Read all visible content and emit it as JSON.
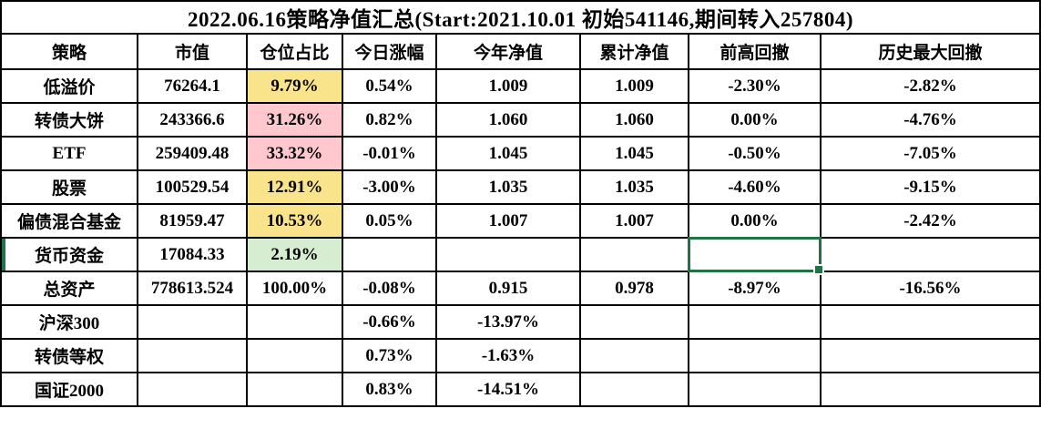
{
  "title": "2022.06.16策略净值汇总(Start:2021.10.01 初始541146,期间转入257804)",
  "colors": {
    "grid_border": "#000000",
    "highlight_yellow_bg": "#FAE48B",
    "highlight_yellow_text": "#9C6500",
    "highlight_pink_bg": "#FFC7CE",
    "highlight_pink_text": "#B00009",
    "highlight_green_bg": "#D6EDD2",
    "highlight_green_text": "#156F1F",
    "selection_green": "#217346"
  },
  "table": {
    "columns": [
      {
        "key": "strategy",
        "label": "策略"
      },
      {
        "key": "market_value",
        "label": "市值"
      },
      {
        "key": "position_pct",
        "label": "仓位占比"
      },
      {
        "key": "today_change",
        "label": "今日涨幅"
      },
      {
        "key": "ytd_nav",
        "label": "今年净值"
      },
      {
        "key": "cumulative_nav",
        "label": "累计净值"
      },
      {
        "key": "drawdown_from_high",
        "label": "前高回撤"
      },
      {
        "key": "historical_max_drawdown",
        "label": "历史最大回撤"
      }
    ],
    "rows": [
      {
        "strategy": "低溢价",
        "market_value": "76264.1",
        "position_pct": "9.79%",
        "position_highlight": "yellow",
        "today_change": "0.54%",
        "ytd_nav": "1.009",
        "cumulative_nav": "1.009",
        "drawdown_from_high": "-2.30%",
        "historical_max_drawdown": "-2.82%"
      },
      {
        "strategy": "转债大饼",
        "market_value": "243366.6",
        "position_pct": "31.26%",
        "position_highlight": "pink",
        "today_change": "0.82%",
        "ytd_nav": "1.060",
        "cumulative_nav": "1.060",
        "drawdown_from_high": "0.00%",
        "historical_max_drawdown": "-4.76%"
      },
      {
        "strategy": "ETF",
        "market_value": "259409.48",
        "position_pct": "33.32%",
        "position_highlight": "pink",
        "today_change": "-0.01%",
        "ytd_nav": "1.045",
        "cumulative_nav": "1.045",
        "drawdown_from_high": "-0.50%",
        "historical_max_drawdown": "-7.05%"
      },
      {
        "strategy": "股票",
        "market_value": "100529.54",
        "position_pct": "12.91%",
        "position_highlight": "yellow",
        "today_change": "-3.00%",
        "ytd_nav": "1.035",
        "cumulative_nav": "1.035",
        "drawdown_from_high": "-4.60%",
        "historical_max_drawdown": "-9.15%"
      },
      {
        "strategy": "偏债混合基金",
        "market_value": "81959.47",
        "position_pct": "10.53%",
        "position_highlight": "yellow",
        "today_change": "0.05%",
        "ytd_nav": "1.007",
        "cumulative_nav": "1.007",
        "drawdown_from_high": "0.00%",
        "historical_max_drawdown": "-2.42%"
      },
      {
        "strategy": "货币资金",
        "market_value": "17084.33",
        "position_pct": "2.19%",
        "position_highlight": "green",
        "today_change": "",
        "ytd_nav": "",
        "cumulative_nav": "",
        "drawdown_from_high": "",
        "historical_max_drawdown": "",
        "selected_cell": "drawdown_from_high",
        "row_selected_indicator": true
      },
      {
        "strategy": "总资产",
        "market_value": "778613.524",
        "position_pct": "100.00%",
        "position_highlight": null,
        "today_change": "-0.08%",
        "ytd_nav": "0.915",
        "cumulative_nav": "0.978",
        "drawdown_from_high": "-8.97%",
        "historical_max_drawdown": "-16.56%"
      },
      {
        "strategy": "沪深300",
        "market_value": "",
        "position_pct": "",
        "position_highlight": null,
        "today_change": "-0.66%",
        "ytd_nav": "-13.97%",
        "cumulative_nav": "",
        "drawdown_from_high": "",
        "historical_max_drawdown": ""
      },
      {
        "strategy": "转债等权",
        "market_value": "",
        "position_pct": "",
        "position_highlight": null,
        "today_change": "0.73%",
        "ytd_nav": "-1.63%",
        "cumulative_nav": "",
        "drawdown_from_high": "",
        "historical_max_drawdown": ""
      },
      {
        "strategy": "国证2000",
        "market_value": "",
        "position_pct": "",
        "position_highlight": null,
        "today_change": "0.83%",
        "ytd_nav": "-14.51%",
        "cumulative_nav": "",
        "drawdown_from_high": "",
        "historical_max_drawdown": ""
      }
    ]
  }
}
